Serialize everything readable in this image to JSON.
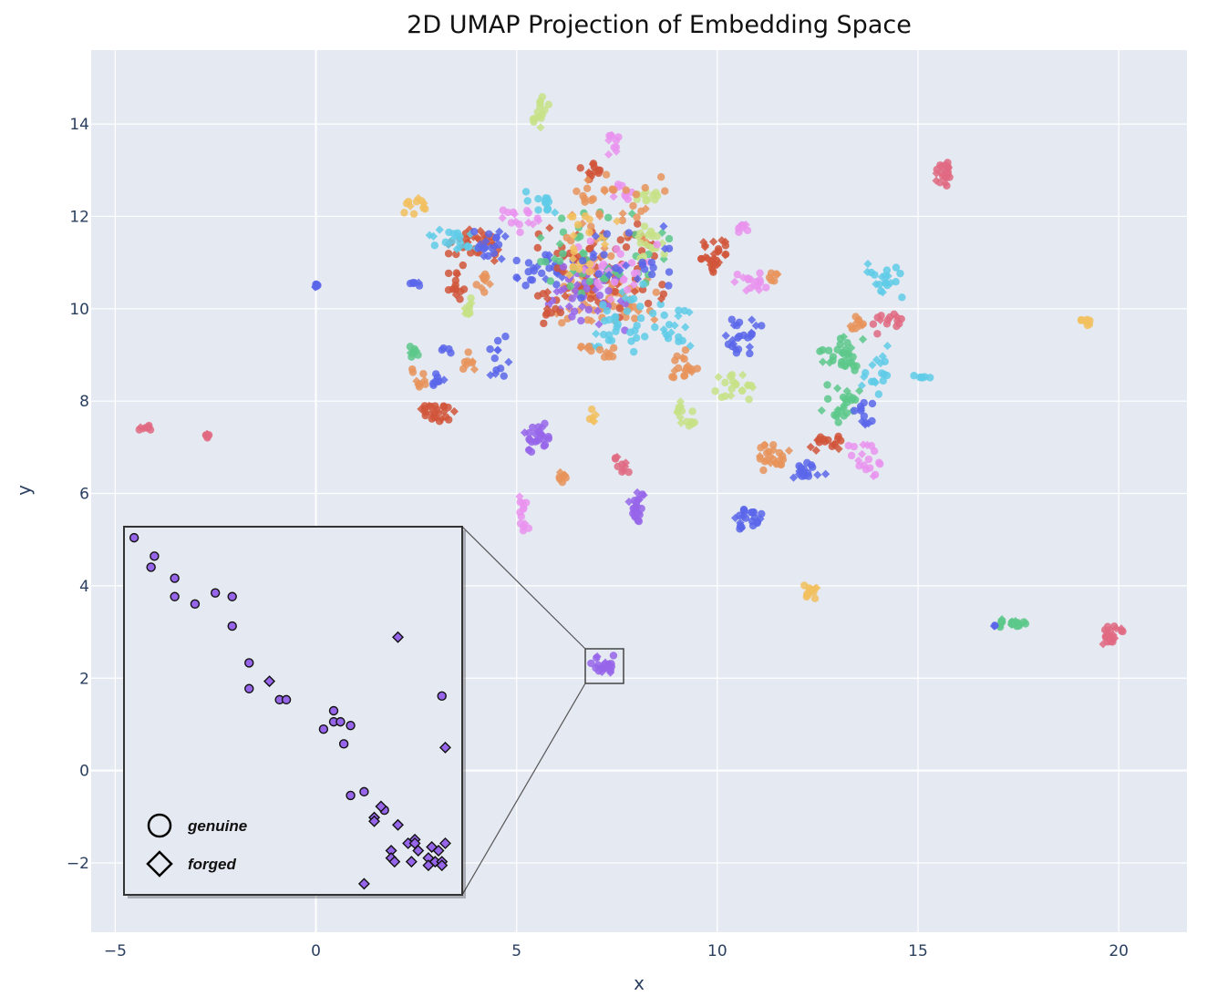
{
  "chart_data": {
    "type": "scatter",
    "title": "2D UMAP Projection of Embedding Space",
    "xlabel": "x",
    "ylabel": "y",
    "xlim": [
      -5.6,
      21.7
    ],
    "ylim": [
      -3.5,
      15.6
    ],
    "x_ticks": [
      {
        "value": -5,
        "label": "−5"
      },
      {
        "value": 0,
        "label": "0"
      },
      {
        "value": 5,
        "label": "5"
      },
      {
        "value": 10,
        "label": "10"
      },
      {
        "value": 15,
        "label": "15"
      },
      {
        "value": 20,
        "label": "20"
      }
    ],
    "y_ticks": [
      {
        "value": -2,
        "label": "−2"
      },
      {
        "value": 0,
        "label": "0"
      },
      {
        "value": 2,
        "label": "2"
      },
      {
        "value": 4,
        "label": "4"
      },
      {
        "value": 6,
        "label": "6"
      },
      {
        "value": 8,
        "label": "8"
      },
      {
        "value": 10,
        "label": "10"
      },
      {
        "value": 12,
        "label": "12"
      },
      {
        "value": 14,
        "label": "14"
      }
    ],
    "grid": true,
    "background": "#e5e9f2",
    "colors": {
      "red": "#d1553a",
      "blue": "#5b66ea",
      "orange": "#e8935a",
      "green": "#5cc88a",
      "cyan": "#5fcbe8",
      "pink": "#e993ef",
      "purple": "#9765ea",
      "lime": "#c7e286",
      "yellow": "#f2c05e",
      "rose": "#e06a82"
    },
    "clusters": [
      {
        "color": "blue",
        "x": [
          -0.05,
          0.05
        ],
        "y": [
          10.45,
          10.55
        ],
        "n": 10
      },
      {
        "color": "rose",
        "x": [
          -4.4,
          -4.1
        ],
        "y": [
          7.35,
          7.48
        ],
        "n": 10
      },
      {
        "color": "rose",
        "x": [
          -2.8,
          -2.6
        ],
        "y": [
          7.2,
          7.33
        ],
        "n": 8
      },
      {
        "color": "rose",
        "x": [
          15.4,
          15.85
        ],
        "y": [
          12.65,
          13.25
        ],
        "n": 22
      },
      {
        "color": "rose",
        "x": [
          19.55,
          20.1
        ],
        "y": [
          2.7,
          3.25
        ],
        "n": 22
      },
      {
        "color": "yellow",
        "x": [
          19.05,
          19.35
        ],
        "y": [
          9.6,
          9.8
        ],
        "n": 8
      },
      {
        "color": "green",
        "x": [
          16.9,
          17.7
        ],
        "y": [
          3.05,
          3.3
        ],
        "n": 20
      },
      {
        "color": "blue",
        "x": [
          16.85,
          16.95
        ],
        "y": [
          3.08,
          3.15
        ],
        "n": 3
      },
      {
        "color": "yellow",
        "x": [
          12.1,
          12.5
        ],
        "y": [
          3.7,
          4.1
        ],
        "n": 14
      },
      {
        "color": "purple",
        "x": [
          5.2,
          5.9
        ],
        "y": [
          6.9,
          7.6
        ],
        "n": 25
      },
      {
        "color": "purple",
        "x": [
          7.8,
          8.2
        ],
        "y": [
          5.3,
          6.1
        ],
        "n": 22
      },
      {
        "color": "blue",
        "x": [
          10.4,
          11.1
        ],
        "y": [
          5.1,
          5.75
        ],
        "n": 22
      },
      {
        "color": "pink",
        "x": [
          5.0,
          5.3
        ],
        "y": [
          5.1,
          6.0
        ],
        "n": 14
      },
      {
        "color": "orange",
        "x": [
          6.0,
          6.3
        ],
        "y": [
          6.2,
          6.5
        ],
        "n": 8
      },
      {
        "color": "rose",
        "x": [
          7.4,
          7.8
        ],
        "y": [
          6.4,
          6.9
        ],
        "n": 10
      },
      {
        "color": "orange",
        "x": [
          11.0,
          11.8
        ],
        "y": [
          6.3,
          7.1
        ],
        "n": 24
      },
      {
        "color": "blue",
        "x": [
          11.9,
          12.7
        ],
        "y": [
          6.3,
          6.7
        ],
        "n": 16
      },
      {
        "color": "red",
        "x": [
          12.3,
          13.1
        ],
        "y": [
          6.8,
          7.4
        ],
        "n": 16
      },
      {
        "color": "pink",
        "x": [
          13.2,
          14.1
        ],
        "y": [
          6.3,
          7.2
        ],
        "n": 18
      },
      {
        "color": "green",
        "x": [
          12.4,
          13.8
        ],
        "y": [
          8.6,
          9.4
        ],
        "n": 30
      },
      {
        "color": "green",
        "x": [
          12.6,
          13.6
        ],
        "y": [
          7.5,
          8.4
        ],
        "n": 24
      },
      {
        "color": "cyan",
        "x": [
          13.6,
          14.5
        ],
        "y": [
          8.0,
          9.2
        ],
        "n": 18
      },
      {
        "color": "blue",
        "x": [
          13.4,
          13.9
        ],
        "y": [
          7.3,
          8.1
        ],
        "n": 12
      },
      {
        "color": "cyan",
        "x": [
          13.7,
          14.6
        ],
        "y": [
          10.2,
          11.0
        ],
        "n": 20
      },
      {
        "color": "orange",
        "x": [
          13.0,
          13.7
        ],
        "y": [
          9.5,
          9.9
        ],
        "n": 10
      },
      {
        "color": "rose",
        "x": [
          13.8,
          14.7
        ],
        "y": [
          9.4,
          9.9
        ],
        "n": 14
      },
      {
        "color": "cyan",
        "x": [
          14.9,
          15.3
        ],
        "y": [
          8.4,
          8.6
        ],
        "n": 6
      },
      {
        "color": "blue",
        "x": [
          10.0,
          11.1
        ],
        "y": [
          8.9,
          9.8
        ],
        "n": 24
      },
      {
        "color": "lime",
        "x": [
          9.8,
          10.9
        ],
        "y": [
          7.9,
          8.6
        ],
        "n": 20
      },
      {
        "color": "lime",
        "x": [
          8.8,
          9.6
        ],
        "y": [
          7.4,
          8.0
        ],
        "n": 14
      },
      {
        "color": "orange",
        "x": [
          8.8,
          9.5
        ],
        "y": [
          8.3,
          9.2
        ],
        "n": 18
      },
      {
        "color": "cyan",
        "x": [
          8.4,
          9.4
        ],
        "y": [
          9.1,
          10.3
        ],
        "n": 18
      },
      {
        "color": "red",
        "x": [
          9.6,
          10.4
        ],
        "y": [
          10.7,
          11.6
        ],
        "n": 28
      },
      {
        "color": "pink",
        "x": [
          10.4,
          11.3
        ],
        "y": [
          10.3,
          10.9
        ],
        "n": 16
      },
      {
        "color": "pink",
        "x": [
          10.4,
          10.9
        ],
        "y": [
          11.6,
          11.9
        ],
        "n": 8
      },
      {
        "color": "orange",
        "x": [
          11.1,
          11.5
        ],
        "y": [
          10.6,
          10.8
        ],
        "n": 6
      },
      {
        "color": "red",
        "x": [
          2.5,
          3.5
        ],
        "y": [
          7.5,
          8.0
        ],
        "n": 24
      },
      {
        "color": "blue",
        "x": [
          2.8,
          3.2
        ],
        "y": [
          8.2,
          8.6
        ],
        "n": 8
      },
      {
        "color": "orange",
        "x": [
          2.2,
          2.9
        ],
        "y": [
          8.3,
          8.8
        ],
        "n": 10
      },
      {
        "color": "green",
        "x": [
          2.3,
          2.6
        ],
        "y": [
          8.9,
          9.3
        ],
        "n": 8
      },
      {
        "color": "blue",
        "x": [
          3.0,
          3.4
        ],
        "y": [
          9.0,
          9.2
        ],
        "n": 4
      },
      {
        "color": "orange",
        "x": [
          3.6,
          4.0
        ],
        "y": [
          8.6,
          9.2
        ],
        "n": 8
      },
      {
        "color": "blue",
        "x": [
          4.3,
          4.8
        ],
        "y": [
          8.5,
          9.4
        ],
        "n": 12
      },
      {
        "color": "yellow",
        "x": [
          2.2,
          2.8
        ],
        "y": [
          12.0,
          12.5
        ],
        "n": 12
      },
      {
        "color": "lime",
        "x": [
          3.6,
          4.0
        ],
        "y": [
          9.8,
          10.3
        ],
        "n": 10
      },
      {
        "color": "red",
        "x": [
          3.3,
          3.7
        ],
        "y": [
          10.2,
          11.0
        ],
        "n": 14
      },
      {
        "color": "orange",
        "x": [
          4.0,
          4.4
        ],
        "y": [
          10.3,
          10.9
        ],
        "n": 10
      },
      {
        "color": "blue",
        "x": [
          2.3,
          2.7
        ],
        "y": [
          10.4,
          10.6
        ],
        "n": 6
      },
      {
        "color": "lime",
        "x": [
          5.4,
          5.8
        ],
        "y": [
          13.9,
          14.6
        ],
        "n": 14
      },
      {
        "color": "pink",
        "x": [
          7.2,
          7.6
        ],
        "y": [
          13.3,
          13.9
        ],
        "n": 10
      },
      {
        "color": "lime",
        "x": [
          8.0,
          8.6
        ],
        "y": [
          12.3,
          12.6
        ],
        "n": 10
      },
      {
        "color": "pink",
        "x": [
          7.4,
          8.0
        ],
        "y": [
          12.3,
          12.8
        ],
        "n": 10
      },
      {
        "color": "red",
        "x": [
          6.5,
          7.2
        ],
        "y": [
          12.8,
          13.2
        ],
        "n": 12
      },
      {
        "color": "cyan",
        "x": [
          5.2,
          6.0
        ],
        "y": [
          12.0,
          12.6
        ],
        "n": 14
      },
      {
        "color": "yellow",
        "x": [
          6.8,
          7.0
        ],
        "y": [
          7.5,
          7.9
        ],
        "n": 6
      },
      {
        "color": "red",
        "x": [
          3.3,
          4.8
        ],
        "y": [
          11.0,
          11.8
        ],
        "n": 30
      },
      {
        "color": "cyan",
        "x": [
          2.8,
          4.0
        ],
        "y": [
          11.2,
          11.8
        ],
        "n": 20
      },
      {
        "color": "blue",
        "x": [
          3.9,
          4.9
        ],
        "y": [
          11.0,
          11.8
        ],
        "n": 18
      },
      {
        "color": "pink",
        "x": [
          4.6,
          5.6
        ],
        "y": [
          11.6,
          12.3
        ],
        "n": 16
      },
      {
        "color": "blue",
        "x": [
          5.0,
          6.5
        ],
        "y": [
          10.4,
          11.3
        ],
        "n": 30
      },
      {
        "color": "orange",
        "x": [
          6.0,
          8.5
        ],
        "y": [
          9.5,
          11.0
        ],
        "n": 70
      },
      {
        "color": "red",
        "x": [
          5.4,
          8.8
        ],
        "y": [
          9.8,
          12.0
        ],
        "n": 70
      },
      {
        "color": "purple",
        "x": [
          5.8,
          7.8
        ],
        "y": [
          9.4,
          11.2
        ],
        "n": 45
      },
      {
        "color": "green",
        "x": [
          5.6,
          8.8
        ],
        "y": [
          10.3,
          12.3
        ],
        "n": 45
      },
      {
        "color": "cyan",
        "x": [
          6.8,
          8.6
        ],
        "y": [
          9.0,
          10.6
        ],
        "n": 35
      },
      {
        "color": "orange",
        "x": [
          6.0,
          8.8
        ],
        "y": [
          11.0,
          13.0
        ],
        "n": 40
      },
      {
        "color": "lime",
        "x": [
          7.9,
          8.8
        ],
        "y": [
          10.8,
          12.0
        ],
        "n": 18
      },
      {
        "color": "pink",
        "x": [
          6.5,
          8.5
        ],
        "y": [
          10.0,
          11.5
        ],
        "n": 25
      },
      {
        "color": "yellow",
        "x": [
          5.8,
          7.5
        ],
        "y": [
          10.5,
          12.2
        ],
        "n": 20
      },
      {
        "color": "blue",
        "x": [
          6.5,
          8.8
        ],
        "y": [
          10.0,
          12.0
        ],
        "n": 25
      },
      {
        "color": "red",
        "x": [
          5.5,
          6.2
        ],
        "y": [
          9.6,
          10.4
        ],
        "n": 10
      },
      {
        "color": "orange",
        "x": [
          6.6,
          7.8
        ],
        "y": [
          8.9,
          9.4
        ],
        "n": 12
      },
      {
        "color": "purple",
        "x": [
          6.8,
          7.5
        ],
        "y": [
          2.1,
          2.5
        ],
        "n": 20
      }
    ],
    "inset": {
      "title": "",
      "region": {
        "x": [
          6.5,
          7.5
        ],
        "y": [
          1.9,
          2.7
        ]
      },
      "legend": [
        {
          "marker": "circle",
          "label": "genuine"
        },
        {
          "marker": "diamond",
          "label": "forged"
        }
      ],
      "genuine": [
        [
          0.03,
          0.97
        ],
        [
          0.08,
          0.89
        ],
        [
          0.09,
          0.92
        ],
        [
          0.15,
          0.86
        ],
        [
          0.15,
          0.81
        ],
        [
          0.21,
          0.79
        ],
        [
          0.27,
          0.82
        ],
        [
          0.32,
          0.81
        ],
        [
          0.32,
          0.73
        ],
        [
          0.37,
          0.63
        ],
        [
          0.37,
          0.56
        ],
        [
          0.46,
          0.53
        ],
        [
          0.48,
          0.53
        ],
        [
          0.59,
          0.45
        ],
        [
          0.62,
          0.5
        ],
        [
          0.62,
          0.47
        ],
        [
          0.64,
          0.47
        ],
        [
          0.65,
          0.41
        ],
        [
          0.67,
          0.46
        ],
        [
          0.67,
          0.27
        ],
        [
          0.71,
          0.28
        ],
        [
          0.77,
          0.23
        ],
        [
          0.94,
          0.54
        ]
      ],
      "forged": [
        [
          0.81,
          0.7
        ],
        [
          0.43,
          0.58
        ],
        [
          0.95,
          0.4
        ],
        [
          0.76,
          0.24
        ],
        [
          0.74,
          0.21
        ],
        [
          0.74,
          0.2
        ],
        [
          0.81,
          0.19
        ],
        [
          0.84,
          0.14
        ],
        [
          0.79,
          0.12
        ],
        [
          0.79,
          0.1
        ],
        [
          0.8,
          0.09
        ],
        [
          0.86,
          0.15
        ],
        [
          0.86,
          0.14
        ],
        [
          0.91,
          0.13
        ],
        [
          0.9,
          0.1
        ],
        [
          0.92,
          0.09
        ],
        [
          0.93,
          0.12
        ],
        [
          0.94,
          0.09
        ],
        [
          0.95,
          0.14
        ],
        [
          0.9,
          0.08
        ],
        [
          0.94,
          0.08
        ],
        [
          0.71,
          0.03
        ],
        [
          0.87,
          0.12
        ],
        [
          0.85,
          0.09
        ]
      ]
    }
  }
}
